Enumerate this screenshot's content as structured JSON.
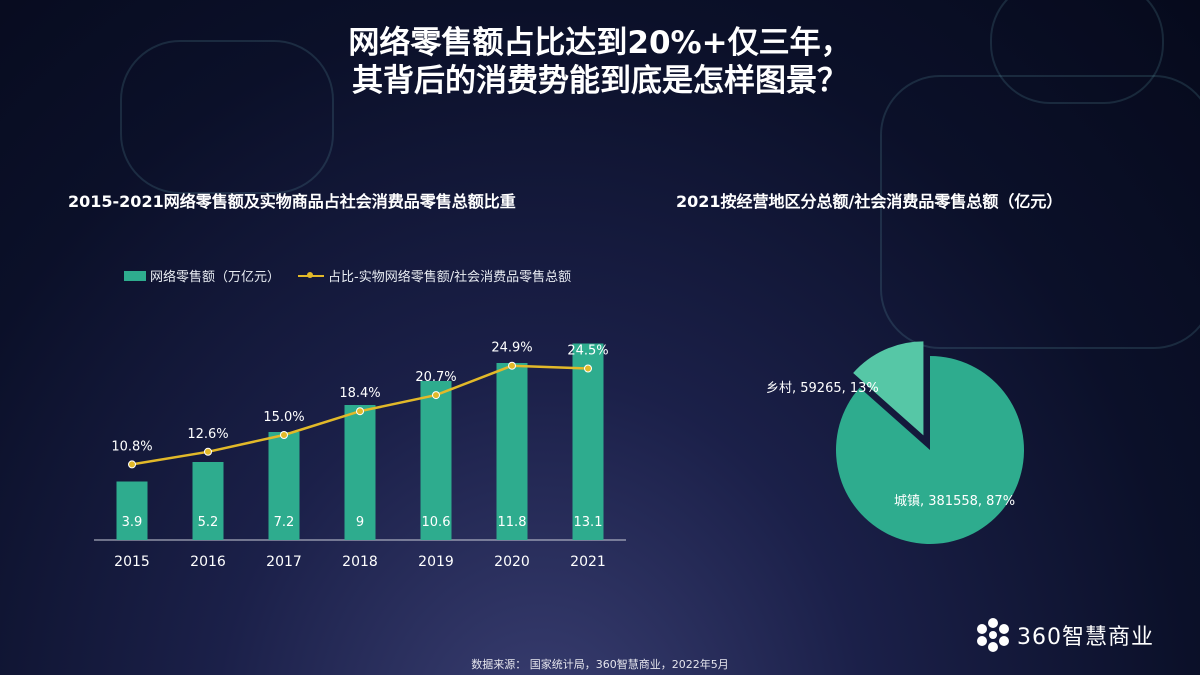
{
  "headline": {
    "line1": "网络零售额占比达到20%+仅三年，",
    "line2": "其背后的消费势能到底是怎样图景？"
  },
  "chart_data": [
    {
      "type": "bar",
      "title": "2015-2021网络零售额及实物商品占社会消费品零售总额比重",
      "categories": [
        "2015",
        "2016",
        "2017",
        "2018",
        "2019",
        "2020",
        "2021"
      ],
      "series": [
        {
          "name": "网络零售额（万亿元）",
          "type": "bar",
          "values": [
            3.9,
            5.2,
            7.2,
            9,
            10.6,
            11.8,
            13.1
          ],
          "color": "#2eac8e"
        },
        {
          "name": "占比-实物网络零售额/社会消费品零售总额",
          "type": "line",
          "values": [
            10.8,
            12.6,
            15.0,
            18.4,
            20.7,
            24.9,
            24.5
          ],
          "color": "#e2b929"
        }
      ],
      "bar_labels": [
        "3.9",
        "5.2",
        "7.2",
        "9",
        "10.6",
        "11.8",
        "13.1"
      ],
      "line_labels": [
        "10.8%",
        "12.6%",
        "15.0%",
        "18.4%",
        "20.7%",
        "24.9%",
        "24.5%"
      ],
      "ylim_bar": [
        0,
        14
      ],
      "ylim_line": [
        0,
        30
      ],
      "legend_position": "top-left",
      "grid": false
    },
    {
      "type": "pie",
      "title": "2021按经营地区分总额/社会消费品零售总额（亿元）",
      "slices": [
        {
          "label": "城镇",
          "value": 381558,
          "percent": 87,
          "display": "城镇, 381558, 87%",
          "color": "#2eac8e"
        },
        {
          "label": "乡村",
          "value": 59265,
          "percent": 13,
          "display": "乡村, 59265, 13%",
          "color": "#56c7a6",
          "exploded": true
        }
      ]
    }
  ],
  "source": "数据来源：  国家统计局，360智慧商业，2022年5月",
  "brand": {
    "name": "360智慧商业"
  },
  "colors": {
    "bar": "#2eac8e",
    "line": "#e2b929",
    "background": "#0b1029"
  }
}
